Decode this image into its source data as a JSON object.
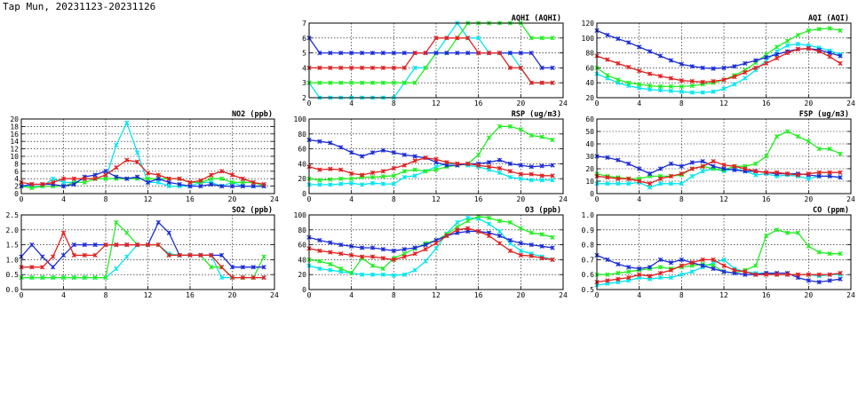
{
  "title": "Tap Mun, 20231123-20231126",
  "series_colors": {
    "cyan": "#00e5ee",
    "green": "#22ee22",
    "blue": "#1a2bd6",
    "red": "#e02020"
  },
  "chart_data": [
    {
      "type": "line",
      "title": "AQHI (AQHI)",
      "ylim": [
        2,
        7
      ],
      "yticks": [
        "2",
        "3",
        "4",
        "5",
        "6",
        "7"
      ],
      "xticks": [
        "0",
        "4",
        "8",
        "12",
        "16",
        "20",
        "24"
      ],
      "xlim": [
        0,
        24
      ],
      "grid": true,
      "series": [
        {
          "color": "#00e5ee",
          "values": [
            3,
            2,
            2,
            2,
            2,
            2,
            2,
            2,
            2,
            3,
            4,
            4,
            5,
            6,
            7,
            6,
            6,
            5,
            5,
            5,
            4,
            3,
            3,
            3
          ]
        },
        {
          "color": "#22ee22",
          "values": [
            3,
            3,
            3,
            3,
            3,
            3,
            3,
            3,
            3,
            3,
            3,
            4,
            5,
            5,
            6,
            7,
            7,
            7,
            7,
            7,
            7,
            6,
            6,
            6
          ]
        },
        {
          "color": "#1a2bd6",
          "values": [
            6,
            5,
            5,
            5,
            5,
            5,
            5,
            5,
            5,
            5,
            5,
            5,
            5,
            5,
            5,
            5,
            5,
            5,
            5,
            5,
            5,
            5,
            4,
            4
          ]
        },
        {
          "color": "#e02020",
          "values": [
            4,
            4,
            4,
            4,
            4,
            4,
            4,
            4,
            4,
            4,
            5,
            5,
            6,
            6,
            6,
            6,
            5,
            5,
            5,
            4,
            4,
            3,
            3,
            3
          ]
        }
      ]
    },
    {
      "type": "line",
      "title": "AQI (AQI)",
      "ylim": [
        20,
        120
      ],
      "yticks": [
        "20",
        "40",
        "60",
        "80",
        "100",
        "120"
      ],
      "xticks": [
        "0",
        "4",
        "8",
        "12",
        "16",
        "20",
        "24"
      ],
      "xlim": [
        0,
        24
      ],
      "grid": true,
      "series": [
        {
          "color": "#00e5ee",
          "values": [
            52,
            46,
            40,
            36,
            33,
            31,
            30,
            29,
            28,
            27,
            27,
            28,
            32,
            38,
            46,
            57,
            70,
            82,
            90,
            92,
            90,
            87,
            83,
            78
          ]
        },
        {
          "color": "#22ee22",
          "values": [
            60,
            50,
            44,
            40,
            38,
            36,
            35,
            35,
            35,
            36,
            38,
            40,
            44,
            50,
            57,
            67,
            78,
            88,
            96,
            104,
            110,
            112,
            113,
            110
          ]
        },
        {
          "color": "#1a2bd6",
          "values": [
            110,
            104,
            99,
            94,
            88,
            82,
            76,
            70,
            65,
            62,
            60,
            59,
            60,
            62,
            66,
            70,
            74,
            78,
            82,
            85,
            86,
            84,
            80,
            76
          ]
        },
        {
          "color": "#e02020",
          "values": [
            76,
            71,
            66,
            61,
            56,
            52,
            49,
            46,
            43,
            42,
            41,
            42,
            44,
            48,
            54,
            60,
            66,
            73,
            80,
            85,
            86,
            82,
            75,
            66
          ]
        }
      ]
    },
    {
      "type": "line",
      "title": "NO2 (ppb)",
      "ylim": [
        0,
        20
      ],
      "yticks": [
        "0",
        "2",
        "4",
        "6",
        "8",
        "10",
        "12",
        "14",
        "16",
        "18",
        "20"
      ],
      "xticks": [
        "0",
        "4",
        "8",
        "12",
        "16",
        "20",
        "24"
      ],
      "xlim": [
        0,
        24
      ],
      "grid": true,
      "series": [
        {
          "color": "#00e5ee",
          "values": [
            2,
            2,
            2,
            4,
            3,
            3,
            4,
            4,
            4,
            13,
            19,
            11,
            3,
            3,
            2,
            2,
            2,
            3,
            3,
            2,
            3,
            2,
            2,
            2
          ]
        },
        {
          "color": "#22ee22",
          "values": [
            2,
            1.5,
            2,
            2,
            2,
            3,
            3,
            4,
            4,
            4,
            4,
            4,
            4,
            4,
            4,
            4,
            3,
            3,
            4,
            4,
            3,
            3,
            3,
            2
          ]
        },
        {
          "color": "#1a2bd6",
          "values": [
            2,
            2.5,
            2.5,
            2.5,
            2,
            2.5,
            4.5,
            5,
            6,
            4.5,
            4,
            4.5,
            3,
            4,
            3,
            2.5,
            2,
            2,
            2.5,
            2,
            2,
            2,
            2,
            2
          ]
        },
        {
          "color": "#e02020",
          "values": [
            3,
            2.5,
            2.5,
            3,
            4,
            4,
            4,
            4,
            5,
            7,
            9,
            8.5,
            5.5,
            5,
            4,
            4,
            3,
            3.5,
            5,
            6,
            5,
            4,
            3,
            2.5
          ]
        }
      ]
    },
    {
      "type": "line",
      "title": "RSP (ug/m3)",
      "ylim": [
        0,
        100
      ],
      "yticks": [
        "0",
        "20",
        "40",
        "60",
        "80",
        "100"
      ],
      "xticks": [
        "0",
        "4",
        "8",
        "12",
        "16",
        "20",
        "24"
      ],
      "xlim": [
        0,
        24
      ],
      "grid": true,
      "series": [
        {
          "color": "#00e5ee",
          "values": [
            12,
            12,
            12,
            13,
            14,
            12,
            14,
            13,
            13,
            22,
            24,
            30,
            36,
            40,
            40,
            38,
            36,
            32,
            28,
            22,
            20,
            18,
            18,
            18
          ]
        },
        {
          "color": "#22ee22",
          "values": [
            20,
            18,
            19,
            20,
            20,
            22,
            22,
            23,
            24,
            30,
            32,
            30,
            32,
            36,
            38,
            40,
            52,
            75,
            90,
            90,
            86,
            78,
            76,
            72
          ]
        },
        {
          "color": "#1a2bd6",
          "values": [
            72,
            70,
            68,
            62,
            55,
            50,
            55,
            58,
            55,
            52,
            50,
            48,
            42,
            38,
            38,
            40,
            40,
            42,
            45,
            40,
            38,
            36,
            37,
            38
          ]
        },
        {
          "color": "#e02020",
          "values": [
            36,
            32,
            33,
            32,
            27,
            25,
            28,
            30,
            34,
            38,
            44,
            48,
            46,
            42,
            40,
            40,
            38,
            36,
            34,
            30,
            26,
            26,
            24,
            24
          ]
        }
      ]
    },
    {
      "type": "line",
      "title": "FSP (ug/m3)",
      "ylim": [
        0,
        60
      ],
      "yticks": [
        "0",
        "10",
        "20",
        "30",
        "40",
        "50",
        "60"
      ],
      "xticks": [
        "0",
        "4",
        "8",
        "12",
        "16",
        "20",
        "24"
      ],
      "xlim": [
        0,
        24
      ],
      "grid": true,
      "series": [
        {
          "color": "#00e5ee",
          "values": [
            8,
            8,
            8,
            8,
            9,
            5,
            8,
            8,
            8,
            14,
            18,
            20,
            18,
            20,
            18,
            15,
            16,
            14,
            15,
            14,
            12,
            14,
            14,
            13
          ]
        },
        {
          "color": "#22ee22",
          "values": [
            16,
            14,
            13,
            12,
            12,
            14,
            14,
            14,
            15,
            20,
            22,
            20,
            19,
            22,
            22,
            24,
            30,
            46,
            50,
            46,
            42,
            36,
            36,
            32
          ]
        },
        {
          "color": "#1a2bd6",
          "values": [
            30,
            29,
            27,
            24,
            20,
            16,
            20,
            24,
            22,
            25,
            26,
            22,
            20,
            19,
            18,
            18,
            17,
            16,
            16,
            16,
            15,
            14,
            14,
            13
          ]
        },
        {
          "color": "#e02020",
          "values": [
            14,
            13,
            12,
            12,
            10,
            8,
            12,
            14,
            16,
            20,
            22,
            26,
            23,
            22,
            20,
            18,
            17,
            17,
            16,
            15,
            16,
            17,
            17,
            17
          ]
        }
      ]
    },
    {
      "type": "line",
      "title": "SO2 (ppb)",
      "ylim": [
        0,
        2.5
      ],
      "yticks": [
        "0.0",
        "0.5",
        "1.0",
        "1.5",
        "2.0",
        "2.5"
      ],
      "xticks": [
        "0",
        "4",
        "8",
        "12",
        "16",
        "20",
        "24"
      ],
      "xlim": [
        0,
        24
      ],
      "grid": true,
      "series": [
        {
          "color": "#00e5ee",
          "values": [
            0.4,
            0.4,
            0.4,
            0.4,
            0.4,
            0.4,
            0.4,
            0.4,
            0.4,
            0.7,
            1.1,
            1.5,
            1.5,
            1.5,
            1.2,
            1.15,
            1.15,
            1.15,
            1.15,
            0.4,
            0.4,
            0.4,
            0.4,
            0.4
          ]
        },
        {
          "color": "#22ee22",
          "values": [
            0.4,
            0.4,
            0.4,
            0.4,
            0.4,
            0.4,
            0.4,
            0.4,
            0.4,
            2.25,
            1.9,
            1.5,
            1.5,
            1.5,
            1.15,
            1.15,
            1.15,
            1.15,
            0.75,
            0.75,
            0.4,
            0.4,
            0.4,
            1.1
          ]
        },
        {
          "color": "#1a2bd6",
          "values": [
            1.1,
            1.5,
            1.1,
            0.75,
            1.15,
            1.5,
            1.5,
            1.5,
            1.5,
            1.5,
            1.5,
            1.5,
            1.5,
            2.25,
            1.9,
            1.15,
            1.15,
            1.15,
            1.15,
            1.15,
            0.75,
            0.75,
            0.75,
            0.75
          ]
        },
        {
          "color": "#e02020",
          "values": [
            0.75,
            0.75,
            0.75,
            1.1,
            1.9,
            1.15,
            1.15,
            1.15,
            1.5,
            1.5,
            1.5,
            1.5,
            1.5,
            1.5,
            1.15,
            1.15,
            1.15,
            1.15,
            1.15,
            0.75,
            0.4,
            0.4,
            0.4,
            0.4
          ]
        }
      ]
    },
    {
      "type": "line",
      "title": "O3 (ppb)",
      "ylim": [
        0,
        100
      ],
      "yticks": [
        "0",
        "20",
        "40",
        "60",
        "80",
        "100"
      ],
      "xticks": [
        "0",
        "4",
        "8",
        "12",
        "16",
        "20",
        "24"
      ],
      "xlim": [
        0,
        24
      ],
      "grid": true,
      "series": [
        {
          "color": "#00e5ee",
          "values": [
            32,
            28,
            26,
            24,
            22,
            20,
            20,
            20,
            19,
            20,
            26,
            38,
            55,
            75,
            90,
            96,
            95,
            88,
            78,
            62,
            52,
            48,
            44,
            40
          ]
        },
        {
          "color": "#22ee22",
          "values": [
            40,
            38,
            34,
            28,
            22,
            42,
            32,
            28,
            42,
            48,
            55,
            62,
            66,
            74,
            84,
            92,
            98,
            96,
            92,
            90,
            82,
            76,
            74,
            70
          ]
        },
        {
          "color": "#1a2bd6",
          "values": [
            70,
            66,
            63,
            60,
            58,
            56,
            56,
            54,
            52,
            54,
            56,
            60,
            66,
            72,
            76,
            78,
            78,
            76,
            72,
            66,
            62,
            60,
            58,
            56
          ]
        },
        {
          "color": "#e02020",
          "values": [
            55,
            52,
            50,
            48,
            46,
            44,
            44,
            42,
            40,
            44,
            48,
            54,
            62,
            72,
            80,
            82,
            78,
            72,
            62,
            52,
            46,
            45,
            42,
            40
          ]
        }
      ]
    },
    {
      "type": "line",
      "title": "CO (ppm)",
      "ylim": [
        0.5,
        1.0
      ],
      "yticks": [
        "0.5",
        "0.6",
        "0.7",
        "0.8",
        "0.9",
        "1.0"
      ],
      "xticks": [
        "0",
        "4",
        "8",
        "12",
        "16",
        "20",
        "24"
      ],
      "xlim": [
        0,
        24
      ],
      "grid": true,
      "series": [
        {
          "color": "#00e5ee",
          "values": [
            0.53,
            0.54,
            0.55,
            0.56,
            0.58,
            0.57,
            0.58,
            0.58,
            0.6,
            0.62,
            0.65,
            0.68,
            0.7,
            0.64,
            0.62,
            0.61,
            0.61,
            0.6,
            0.6,
            0.6,
            0.6,
            0.59,
            0.6,
            0.6
          ]
        },
        {
          "color": "#22ee22",
          "values": [
            0.6,
            0.6,
            0.61,
            0.62,
            0.63,
            0.64,
            0.65,
            0.64,
            0.65,
            0.66,
            0.67,
            0.66,
            0.62,
            0.61,
            0.63,
            0.66,
            0.86,
            0.9,
            0.88,
            0.88,
            0.79,
            0.75,
            0.74,
            0.74
          ]
        },
        {
          "color": "#1a2bd6",
          "values": [
            0.73,
            0.7,
            0.67,
            0.65,
            0.64,
            0.65,
            0.7,
            0.68,
            0.7,
            0.68,
            0.66,
            0.64,
            0.62,
            0.61,
            0.6,
            0.6,
            0.61,
            0.61,
            0.61,
            0.58,
            0.56,
            0.55,
            0.56,
            0.57
          ]
        },
        {
          "color": "#e02020",
          "values": [
            0.55,
            0.56,
            0.57,
            0.58,
            0.6,
            0.59,
            0.61,
            0.63,
            0.66,
            0.68,
            0.7,
            0.7,
            0.66,
            0.63,
            0.62,
            0.6,
            0.6,
            0.6,
            0.6,
            0.6,
            0.6,
            0.6,
            0.6,
            0.61
          ]
        }
      ]
    }
  ]
}
